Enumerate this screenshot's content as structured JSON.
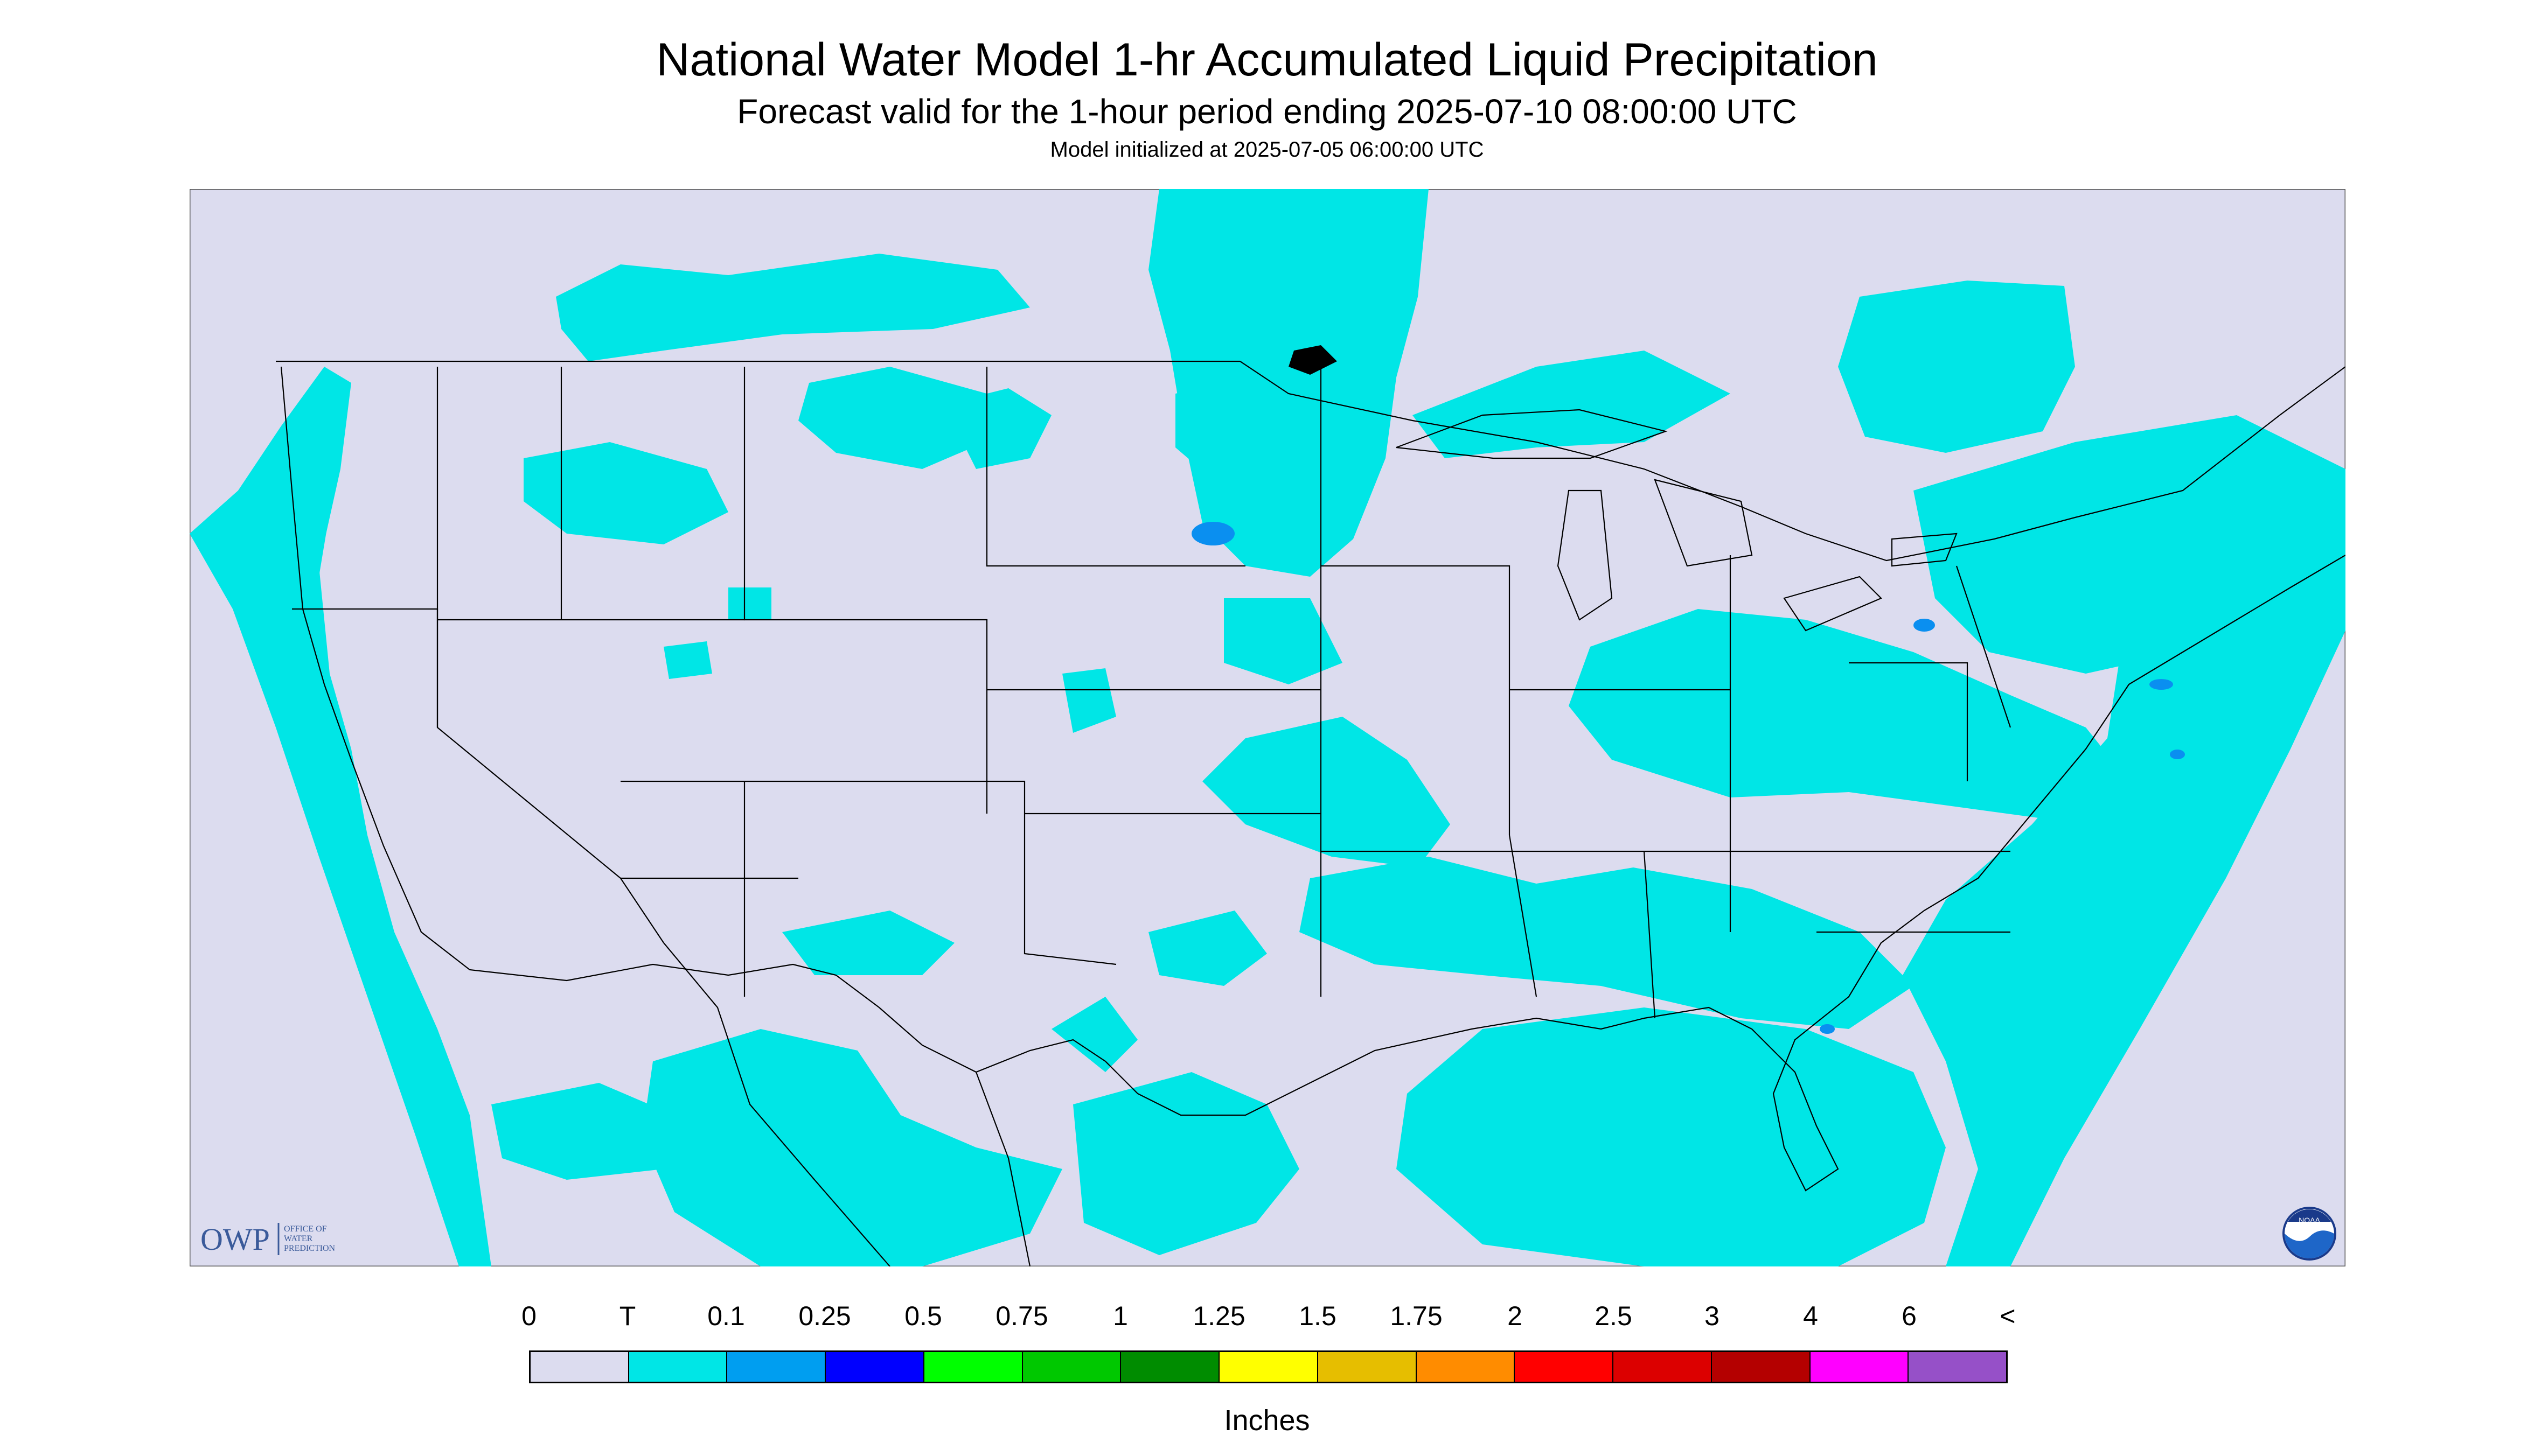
{
  "title": "National Water Model 1-hr Accumulated Liquid Precipitation",
  "subtitle": "Forecast valid for the 1-hour period ending 2025-07-10 08:00:00 UTC",
  "init_text": "Model initialized at 2025-07-05 06:00:00 UTC",
  "logo": {
    "owp": "OWP",
    "owp_sub": [
      "OFFICE OF",
      "WATER",
      "PREDICTION"
    ],
    "noaa": "NOAA"
  },
  "colors": {
    "background": "#dcdcef",
    "trace": "#00e6e6",
    "heavier": "#0aa0ee",
    "boundary": "#000000"
  },
  "legend": {
    "labels": [
      "0",
      "T",
      "0.1",
      "0.25",
      "0.5",
      "0.75",
      "1",
      "1.25",
      "1.5",
      "1.75",
      "2",
      "2.5",
      "3",
      "4",
      "6",
      "<"
    ],
    "colors": [
      "#dcdcef",
      "#00e6e6",
      "#009ef0",
      "#0000ff",
      "#00ff00",
      "#00c800",
      "#008c00",
      "#ffff00",
      "#e6be00",
      "#ff8c00",
      "#ff0000",
      "#dc0000",
      "#b40000",
      "#ff00ff",
      "#9650c8"
    ],
    "units": "Inches"
  }
}
